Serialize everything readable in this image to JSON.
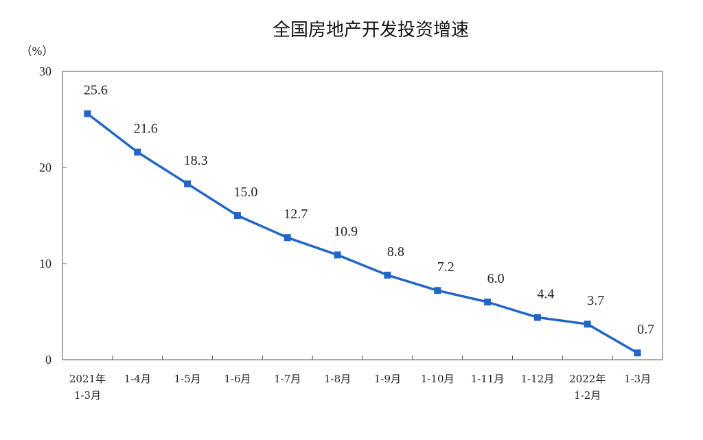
{
  "chart_data": {
    "type": "line",
    "title": "全国房地产开发投资增速",
    "unit_label": "（%）",
    "categories": [
      [
        "2021年",
        "1-3月"
      ],
      [
        "1-4月"
      ],
      [
        "1-5月"
      ],
      [
        "1-6月"
      ],
      [
        "1-7月"
      ],
      [
        "1-8月"
      ],
      [
        "1-9月"
      ],
      [
        "1-10月"
      ],
      [
        "1-11月"
      ],
      [
        "1-12月"
      ],
      [
        "2022年",
        "1-2月"
      ],
      [
        "1-3月"
      ]
    ],
    "series": [
      {
        "values": [
          25.6,
          21.6,
          18.3,
          15.0,
          12.7,
          10.9,
          8.8,
          7.2,
          6.0,
          4.4,
          3.7,
          0.7
        ],
        "labels": [
          "25.6",
          "21.6",
          "18.3",
          "15.0",
          "12.7",
          "10.9",
          "8.8",
          "7.2",
          "6.0",
          "4.4",
          "3.7",
          "0.7"
        ],
        "color": "#2166c7"
      }
    ],
    "ylim": [
      0,
      30
    ],
    "yticks": [
      0,
      10,
      20,
      30
    ],
    "grid": false,
    "legend": "none"
  }
}
